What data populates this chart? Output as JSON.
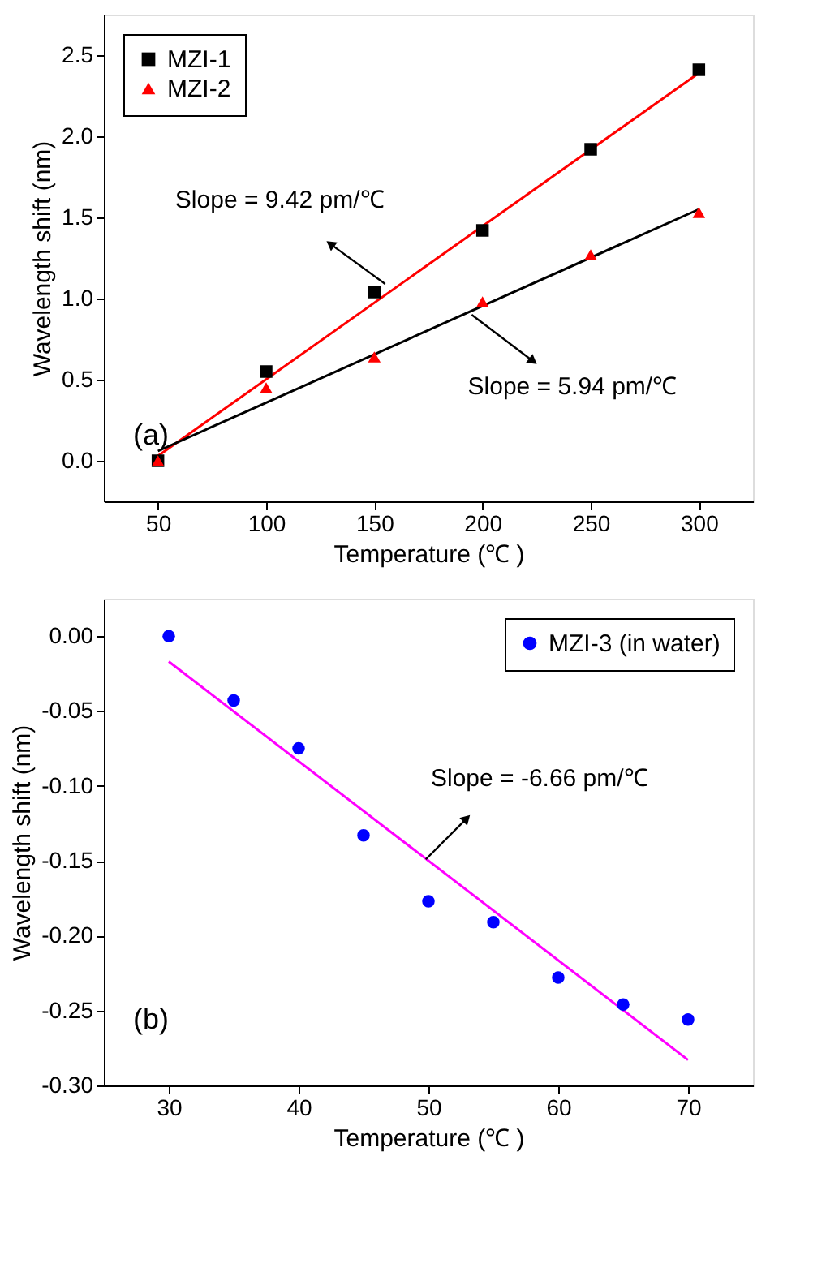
{
  "chart_data": [
    {
      "type": "scatter",
      "xlabel": "Temperature (℃ )",
      "ylabel": "Wavelength shift (nm)",
      "xlim": [
        25,
        325
      ],
      "ylim": [
        -0.25,
        2.75
      ],
      "xticks": [
        50,
        100,
        150,
        200,
        250,
        300
      ],
      "yticks": [
        {
          "value": 0,
          "label": "0.0"
        },
        {
          "value": 0.5,
          "label": "0.5"
        },
        {
          "value": 1,
          "label": "1.0"
        },
        {
          "value": 1.5,
          "label": "1.5"
        },
        {
          "value": 2,
          "label": "2.0"
        },
        {
          "value": 2.5,
          "label": "2.5"
        }
      ],
      "grid": false,
      "legend": "top left",
      "series": [
        {
          "name": "MZI-1",
          "color": "#000000",
          "marker": "square",
          "x": [
            50,
            100,
            150,
            200,
            250,
            300
          ],
          "values": [
            0.0,
            0.55,
            1.04,
            1.42,
            1.92,
            2.41
          ]
        },
        {
          "name": "MZI-2",
          "color": "#ff0000",
          "marker": "triangle",
          "x": [
            50,
            100,
            150,
            200,
            250,
            300
          ],
          "values": [
            0.0,
            0.45,
            0.64,
            0.98,
            1.27,
            1.53
          ]
        },
        {
          "type": "line",
          "color": "#ff0000",
          "marker": "none",
          "x": [
            50,
            300
          ],
          "values": [
            0.03,
            2.39
          ]
        },
        {
          "type": "line",
          "color": "#000000",
          "marker": "none",
          "x": [
            50,
            300
          ],
          "values": [
            0.06,
            1.55
          ]
        }
      ],
      "annotations": [
        {
          "text": "Slope = 9.42 pm/℃",
          "x": 155,
          "y": 1.09
        },
        {
          "text": "Slope = 5.94 pm/℃",
          "x": 195,
          "y": 0.9
        },
        "(a)"
      ]
    },
    {
      "type": "scatter",
      "xlabel": "Temperature (℃ )",
      "ylabel": "Wavelength shift (nm)",
      "xlim": [
        25,
        75
      ],
      "ylim": [
        -0.3,
        0.025
      ],
      "xticks": [
        30,
        40,
        50,
        60,
        70
      ],
      "yticks": [
        {
          "value": -0.3,
          "label": "-0.30"
        },
        {
          "value": -0.25,
          "label": "-0.25"
        },
        {
          "value": -0.2,
          "label": "-0.20"
        },
        {
          "value": -0.15,
          "label": "-0.15"
        },
        {
          "value": -0.1,
          "label": "-0.10"
        },
        {
          "value": -0.05,
          "label": "-0.05"
        },
        {
          "value": 0,
          "label": "0.00"
        }
      ],
      "grid": false,
      "legend": "top right",
      "series": [
        {
          "name": "MZI-3 (in water)",
          "color": "#0000ff",
          "marker": "circle",
          "x": [
            30,
            35,
            40,
            45,
            50,
            55,
            60,
            65,
            70
          ],
          "values": [
            0.0,
            -0.043,
            -0.075,
            -0.133,
            -0.177,
            -0.191,
            -0.228,
            -0.246,
            -0.256
          ]
        },
        {
          "type": "line",
          "color": "#ff00ff",
          "marker": "none",
          "x": [
            30,
            70
          ],
          "values": [
            -0.017,
            -0.283
          ]
        }
      ],
      "annotations": [
        {
          "text": "Slope = -6.66 pm/℃",
          "x": 49.8,
          "y": -0.149
        },
        "(b)"
      ]
    }
  ]
}
